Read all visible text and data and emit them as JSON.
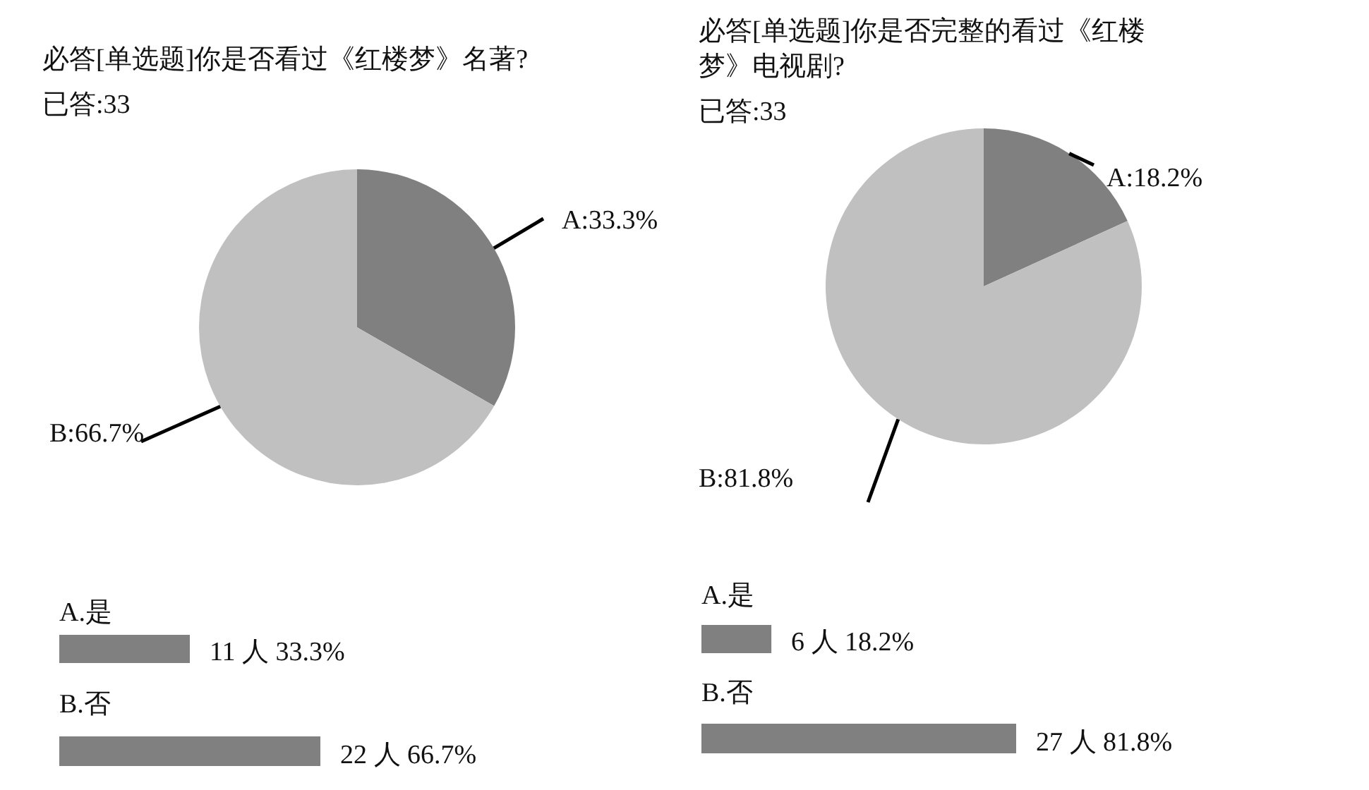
{
  "chart_data": [
    {
      "type": "pie",
      "title": "必答[单选题]你是否看过《红楼梦》名著?",
      "subtitle": "已答:33",
      "categories": [
        null,
        null
      ],
      "values": [
        33.3,
        66.7
      ],
      "colors": [
        "#808080",
        "#c0c0c0"
      ],
      "value_labels": [
        "A:33.3%",
        "B:66.7%"
      ]
    },
    {
      "type": "pie",
      "title": "必答[单选题]你是否完整的看过《红楼梦》电视剧?",
      "subtitle": "已答:33",
      "categories": [
        null,
        null
      ],
      "values": [
        18.2,
        81.8
      ],
      "colors": [
        "#808080",
        "#c0c0c0"
      ],
      "value_labels": [
        "A:18.2%",
        "B:81.8%"
      ]
    },
    {
      "type": "bar",
      "orientation": "horizontal",
      "categories": [
        "A.是",
        "B.否"
      ],
      "values": [
        11,
        22
      ],
      "color": "#808080",
      "value_labels": [
        "11 人  33.3%",
        "22 人  66.7%"
      ]
    },
    {
      "type": "bar",
      "orientation": "horizontal",
      "categories": [
        "A.是",
        "B.否"
      ],
      "values": [
        6,
        27
      ],
      "color": "#808080",
      "value_labels": [
        "6 人  18.2%",
        "27 人  81.8%"
      ]
    }
  ]
}
